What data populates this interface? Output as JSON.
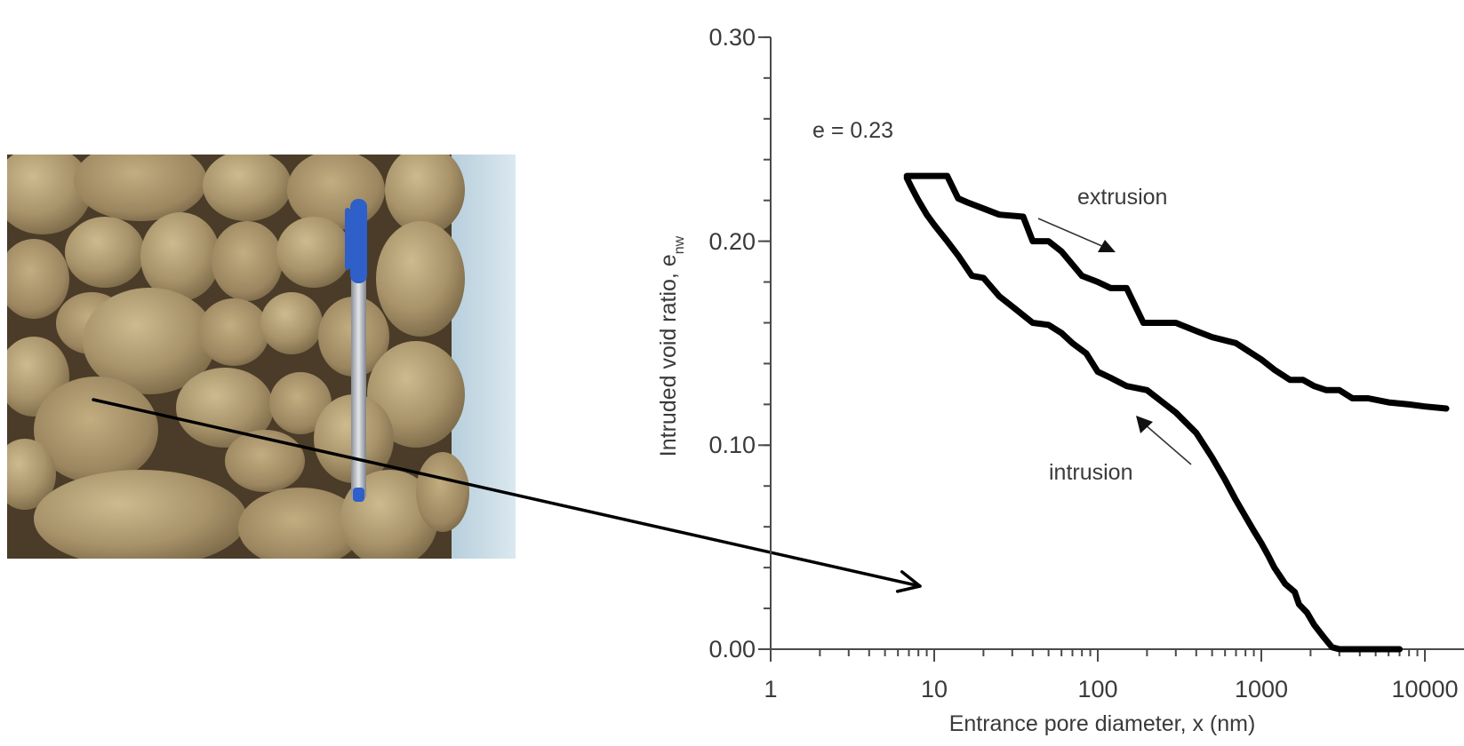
{
  "chart_data": {
    "type": "line",
    "title": "",
    "xlabel": "Entrance pore diameter, x (nm)",
    "ylabel": "Intruded void ratio, e",
    "ylabel_subscript": "nw",
    "xscale": "log",
    "xlim": [
      1,
      10000
    ],
    "ylim": [
      0.0,
      0.3
    ],
    "x_ticks": [
      1,
      10,
      100,
      1000,
      10000
    ],
    "x_tick_labels": [
      "1",
      "10",
      "100",
      "1000",
      "10000"
    ],
    "y_ticks": [
      0.0,
      0.1,
      0.2,
      0.3
    ],
    "y_tick_labels": [
      "0.00",
      "0.10",
      "0.20",
      "0.30"
    ],
    "y_minor_step": 0.02,
    "grid": false,
    "legend": null,
    "annotations": [
      {
        "text": "e = 0.23",
        "x": 1.6,
        "y": 0.25
      },
      {
        "text": "extrusion",
        "x": 300,
        "y": 0.215,
        "arrow": "down-right"
      },
      {
        "text": "intrusion",
        "x": 200,
        "y": 0.085,
        "arrow": "up-left"
      }
    ],
    "series": [
      {
        "name": "intrusion",
        "x": [
          6.8,
          7.2,
          8.0,
          9.0,
          10.0,
          12.0,
          14.0,
          17.0,
          20.0,
          25.0,
          30.0,
          40.0,
          50.0,
          60.0,
          70.0,
          85.0,
          100.0,
          120.0,
          150.0,
          200.0,
          250.0,
          300.0,
          400.0,
          500.0,
          600.0,
          700.0,
          800.0,
          900.0,
          1000.0,
          1100.0,
          1200.0,
          1400.0,
          1600.0,
          1700.0,
          1900.0,
          2100.0,
          2400.0,
          2700.0,
          3000.0,
          4000.0,
          5000.0,
          7000.0
        ],
        "values": [
          0.231,
          0.227,
          0.22,
          0.213,
          0.208,
          0.2,
          0.193,
          0.183,
          0.182,
          0.173,
          0.168,
          0.16,
          0.159,
          0.155,
          0.15,
          0.145,
          0.136,
          0.133,
          0.129,
          0.127,
          0.121,
          0.116,
          0.106,
          0.094,
          0.083,
          0.073,
          0.065,
          0.058,
          0.052,
          0.046,
          0.04,
          0.032,
          0.028,
          0.022,
          0.018,
          0.012,
          0.006,
          0.001,
          0.0,
          0.0,
          0.0,
          0.0
        ]
      },
      {
        "name": "extrusion",
        "x": [
          6.8,
          8.0,
          12.0,
          14.0,
          16.0,
          20.0,
          25.0,
          35.0,
          40.0,
          50.0,
          60.0,
          80.0,
          100.0,
          120.0,
          150.0,
          190.0,
          220.0,
          300.0,
          400.0,
          500.0,
          700.0,
          800.0,
          1000.0,
          1200.0,
          1500.0,
          1800.0,
          2100.0,
          2500.0,
          3000.0,
          3600.0,
          4500.0,
          6000.0,
          8000.0,
          10000.0,
          13500.0
        ],
        "values": [
          0.232,
          0.232,
          0.232,
          0.221,
          0.219,
          0.216,
          0.213,
          0.212,
          0.2,
          0.2,
          0.195,
          0.183,
          0.18,
          0.177,
          0.177,
          0.16,
          0.16,
          0.16,
          0.156,
          0.153,
          0.15,
          0.147,
          0.142,
          0.137,
          0.132,
          0.132,
          0.129,
          0.127,
          0.127,
          0.123,
          0.123,
          0.121,
          0.12,
          0.119,
          0.118
        ]
      }
    ]
  },
  "photo": {
    "description": "Photograph of clay soil aggregates with a blue ballpoint pen for scale",
    "base_color": "#a99468",
    "pen_color": "#2f5fc8",
    "background_color": "#c9dbe6"
  },
  "connector_arrow": {
    "from": [
      105,
      450
    ],
    "to": [
      1035,
      660
    ],
    "color": "#000000"
  },
  "labels": {
    "y_tick_0": "0.00",
    "y_tick_1": "0.10",
    "y_tick_2": "0.20",
    "y_tick_3": "0.30",
    "x_tick_0": "1",
    "x_tick_1": "10",
    "x_tick_2": "100",
    "x_tick_3": "1000",
    "x_tick_4": "10000",
    "xlabel": "Entrance pore diameter, x (nm)",
    "ylabel_main": "Intruded void ratio, e",
    "ylabel_sub": "nw",
    "e_label": "e = 0.23",
    "extrusion_label": "extrusion",
    "intrusion_label": "intrusion"
  }
}
